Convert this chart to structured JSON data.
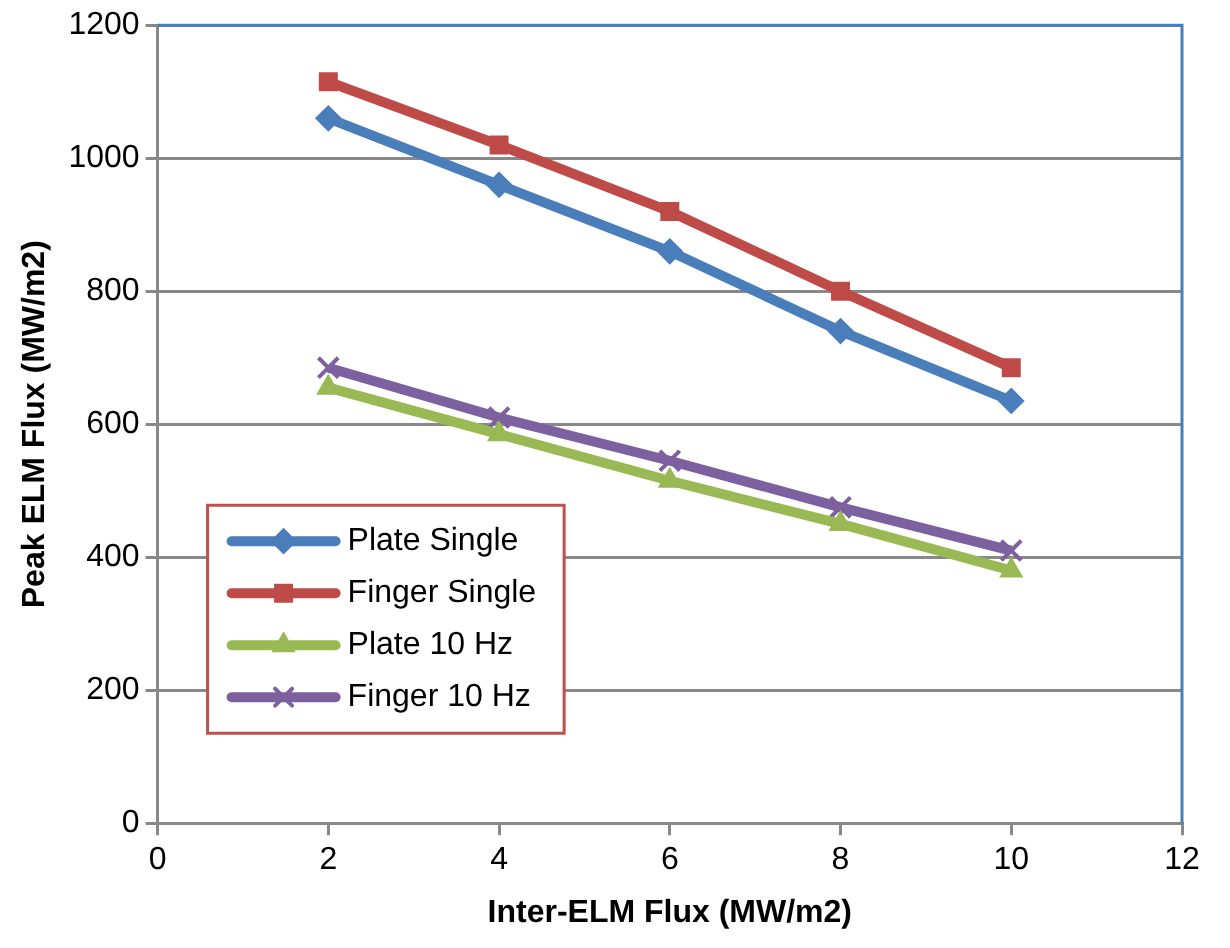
{
  "chart_data": {
    "type": "line",
    "xlabel": "Inter-ELM Flux (MW/m2)",
    "ylabel": "Peak ELM Flux (MW/m2)",
    "x": [
      2,
      4,
      6,
      8,
      10
    ],
    "series": [
      {
        "name": "Plate Single",
        "color": "#4a7ebb",
        "marker": "diamond",
        "values": [
          1060,
          960,
          860,
          740,
          635
        ]
      },
      {
        "name": "Finger Single",
        "color": "#be4b48",
        "marker": "square",
        "values": [
          1115,
          1020,
          920,
          800,
          685
        ]
      },
      {
        "name": "Plate 10 Hz",
        "color": "#98b954",
        "marker": "triangle",
        "values": [
          655,
          585,
          515,
          450,
          380
        ]
      },
      {
        "name": "Finger 10 Hz",
        "color": "#7d60a0",
        "marker": "cross",
        "values": [
          685,
          610,
          545,
          475,
          410
        ]
      }
    ],
    "xlim": [
      0,
      12
    ],
    "xticks": [
      0,
      2,
      4,
      6,
      8,
      10,
      12
    ],
    "ylim": [
      0,
      1200
    ],
    "yticks": [
      0,
      200,
      400,
      600,
      800,
      1000,
      1200
    ],
    "grid": "y",
    "legend": "bottom left",
    "line_style": "solid"
  }
}
